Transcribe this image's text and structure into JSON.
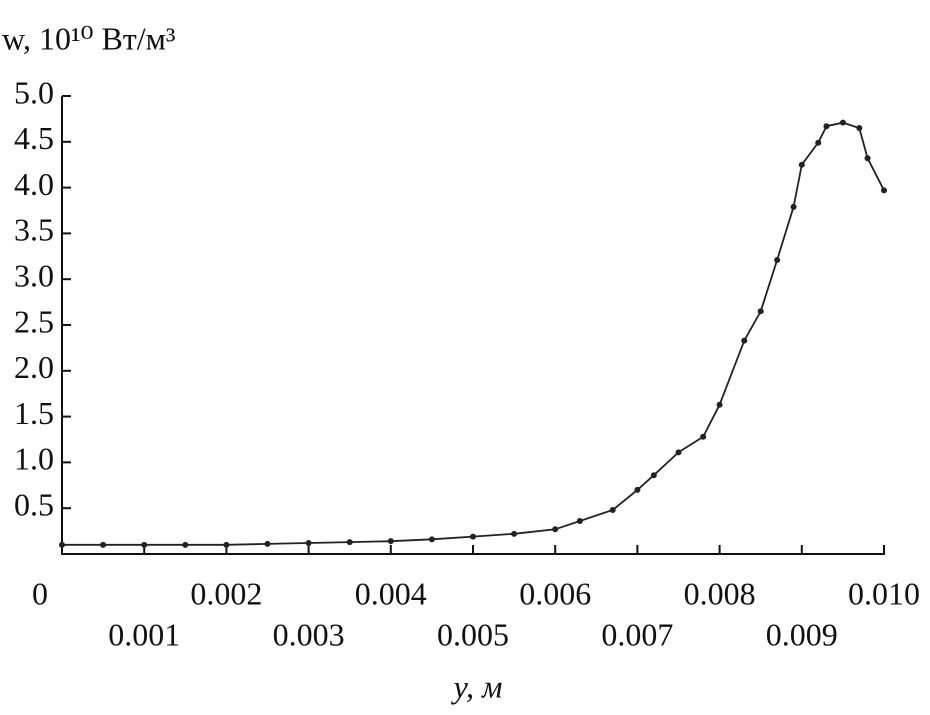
{
  "chart_data": {
    "type": "line",
    "ylabel": "w, 10¹⁰ Вт/м³",
    "xlabel": "y, м",
    "x": [
      0,
      0.0005,
      0.001,
      0.0015,
      0.002,
      0.0025,
      0.003,
      0.0035,
      0.004,
      0.0045,
      0.005,
      0.0055,
      0.006,
      0.0063,
      0.0067,
      0.007,
      0.0072,
      0.0075,
      0.0078,
      0.008,
      0.0083,
      0.0085,
      0.0087,
      0.0089,
      0.009,
      0.0092,
      0.0093,
      0.0095,
      0.0097,
      0.0098,
      0.01
    ],
    "series": [
      {
        "name": "w",
        "color": "#222222",
        "values": [
          0.1,
          0.1,
          0.1,
          0.1,
          0.1,
          0.11,
          0.12,
          0.13,
          0.14,
          0.16,
          0.19,
          0.22,
          0.27,
          0.36,
          0.48,
          0.7,
          0.86,
          1.11,
          1.28,
          1.63,
          2.33,
          2.65,
          3.21,
          3.79,
          4.25,
          4.49,
          4.67,
          4.71,
          4.65,
          4.32,
          3.97
        ]
      }
    ],
    "xlim": [
      0,
      0.01
    ],
    "xticks": [
      0,
      0.001,
      0.002,
      0.003,
      0.004,
      0.005,
      0.006,
      0.007,
      0.008,
      0.009,
      {
        "value": 0.01,
        "label": "0.010"
      }
    ],
    "ylim": [
      0,
      5
    ],
    "yticks": [
      0.5,
      {
        "value": 1,
        "label": "1.0"
      },
      1.5,
      {
        "value": 2,
        "label": "2.0"
      },
      2.5,
      {
        "value": 3,
        "label": "3.0"
      },
      3.5,
      {
        "value": 4,
        "label": "4.0"
      },
      4.5,
      {
        "value": 5,
        "label": "5.0"
      }
    ],
    "grid": false
  }
}
